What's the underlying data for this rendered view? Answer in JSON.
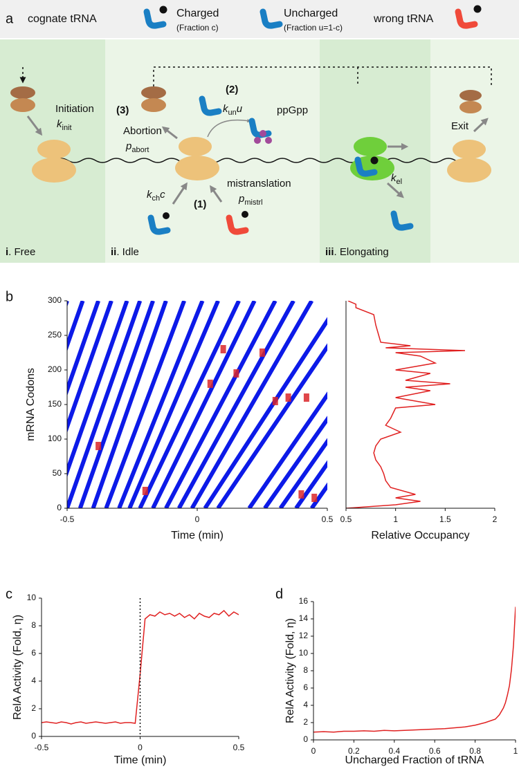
{
  "panel_a": {
    "label": "a",
    "legend": {
      "cognate": "cognate tRNA",
      "charged": "Charged",
      "charged_fraction": "(Fraction c)",
      "uncharged": "Uncharged",
      "uncharged_fraction": "(Fraction u=1-c)",
      "wrong": "wrong tRNA"
    },
    "states": [
      {
        "num": "i",
        "name": ". Free"
      },
      {
        "num": "ii",
        "name": ". Idle"
      },
      {
        "num": "iii",
        "name": ". Elongating"
      }
    ],
    "initiation": "Initiation",
    "k_init": {
      "main": "k",
      "sub": "init"
    },
    "step3": "(3)",
    "abortion": "Abortion",
    "p_abort": {
      "main": "p",
      "sub": "abort"
    },
    "step2": "(2)",
    "k_un": {
      "main": "k",
      "sub": "un",
      "after": "u"
    },
    "ppgpp": "ppGpp",
    "step1": "(1)",
    "k_ch": {
      "main": "k",
      "sub": "ch",
      "after": "c"
    },
    "mistranslation": "mistranslation",
    "p_mistrl": {
      "main": "p",
      "sub": "mistrl"
    },
    "k_el": {
      "main": "k",
      "sub": "el"
    },
    "exit": "Exit"
  },
  "chart_data": [
    {
      "type": "line",
      "panel_label": "b",
      "xlabel": "Time (min)",
      "ylabel": "mRNA Codons",
      "color": "#0c1ae8",
      "xlim": [
        -0.5,
        0.5
      ],
      "xticks": [
        -0.5,
        0,
        0.5
      ],
      "ylim": [
        0,
        300
      ],
      "yticks": [
        0,
        50,
        100,
        150,
        200,
        250,
        300
      ],
      "series": [
        {
          "x": [
            -0.78,
            -0.5
          ],
          "values": [
            0,
            300
          ]
        },
        {
          "x": [
            -0.72,
            -0.44
          ],
          "values": [
            0,
            300
          ]
        },
        {
          "x": [
            -0.66,
            -0.38
          ],
          "values": [
            0,
            300
          ]
        },
        {
          "x": [
            -0.61,
            -0.33
          ],
          "values": [
            0,
            300
          ]
        },
        {
          "x": [
            -0.55,
            -0.27
          ],
          "values": [
            0,
            300
          ]
        },
        {
          "x": [
            -0.5,
            -0.22
          ],
          "values": [
            0,
            300
          ]
        },
        {
          "x": [
            -0.45,
            -0.17
          ],
          "values": [
            0,
            300
          ]
        },
        {
          "x": [
            -0.4,
            -0.12
          ],
          "values": [
            0,
            300
          ]
        },
        {
          "x": [
            -0.35,
            -0.05
          ],
          "values": [
            0,
            300
          ]
        },
        {
          "x": [
            -0.3,
            0.02
          ],
          "values": [
            0,
            300
          ]
        },
        {
          "x": [
            -0.26,
            0.08
          ],
          "values": [
            0,
            300
          ]
        },
        {
          "x": [
            -0.22,
            0.16
          ],
          "values": [
            0,
            300
          ]
        },
        {
          "x": [
            -0.17,
            0.22
          ],
          "values": [
            0,
            300
          ]
        },
        {
          "x": [
            -0.12,
            0.3
          ],
          "values": [
            0,
            300
          ]
        },
        {
          "x": [
            -0.07,
            0.37
          ],
          "values": [
            0,
            300
          ]
        },
        {
          "x": [
            -0.02,
            0.44
          ],
          "values": [
            0,
            300
          ]
        },
        {
          "x": [
            0.03,
            0.55
          ],
          "values": [
            0,
            300
          ]
        },
        {
          "x": [
            0.08,
            0.62
          ],
          "values": [
            0,
            300
          ]
        },
        {
          "x": [
            0.2,
            0.75
          ],
          "values": [
            0,
            300
          ]
        },
        {
          "x": [
            0.26,
            0.82
          ],
          "values": [
            0,
            300
          ]
        },
        {
          "x": [
            0.32,
            0.88
          ],
          "values": [
            0,
            300
          ]
        },
        {
          "x": [
            0.38,
            0.94
          ],
          "values": [
            0,
            300
          ]
        },
        {
          "x": [
            0.44,
            1.0
          ],
          "values": [
            0,
            300
          ]
        }
      ],
      "pauses": {
        "color": "#d9262a",
        "x": [
          -0.38,
          -0.2,
          0.05,
          0.1,
          0.15,
          0.25,
          0.3,
          0.35,
          0.4,
          0.45,
          0.42
        ],
        "y": [
          90,
          25,
          180,
          230,
          195,
          225,
          155,
          160,
          20,
          15,
          160
        ]
      }
    },
    {
      "type": "line",
      "orientation": "horizontal",
      "xlabel": "Relative Occupancy",
      "color": "#e02020",
      "xlim": [
        0.5,
        2
      ],
      "xticks": [
        0.5,
        1,
        1.5,
        2
      ],
      "ylim": [
        0,
        300
      ],
      "y": [
        300,
        295,
        290,
        280,
        265,
        255,
        240,
        235,
        232,
        228,
        225,
        220,
        210,
        200,
        195,
        185,
        180,
        175,
        170,
        160,
        150,
        145,
        130,
        120,
        110,
        100,
        90,
        80,
        70,
        60,
        50,
        40,
        30,
        20,
        15,
        10,
        5,
        0
      ],
      "values": [
        0.52,
        0.6,
        0.6,
        0.78,
        0.8,
        0.82,
        0.85,
        1.15,
        0.9,
        1.7,
        1.0,
        1.25,
        1.4,
        1.0,
        1.35,
        1.1,
        1.55,
        1.1,
        1.35,
        1.0,
        1.4,
        1.0,
        0.95,
        0.9,
        1.05,
        0.85,
        0.8,
        0.78,
        0.8,
        0.85,
        0.88,
        0.9,
        0.95,
        1.2,
        1.0,
        1.25,
        1.0,
        0.5
      ]
    },
    {
      "type": "line",
      "panel_label": "c",
      "xlabel": "Time (min)",
      "ylabel": "RelA Activity (Fold, η)",
      "color": "#e02020",
      "xlim": [
        -0.5,
        0.5
      ],
      "xticks": [
        -0.5,
        0,
        0.5
      ],
      "ylim": [
        0,
        10
      ],
      "yticks": [
        0,
        2,
        4,
        6,
        8,
        10
      ],
      "vline": 0,
      "x": [
        -0.5,
        -0.475,
        -0.45,
        -0.425,
        -0.4,
        -0.375,
        -0.35,
        -0.325,
        -0.3,
        -0.275,
        -0.25,
        -0.225,
        -0.2,
        -0.175,
        -0.15,
        -0.125,
        -0.1,
        -0.075,
        -0.05,
        -0.025,
        0,
        0.025,
        0.05,
        0.075,
        0.1,
        0.125,
        0.15,
        0.175,
        0.2,
        0.225,
        0.25,
        0.275,
        0.3,
        0.325,
        0.35,
        0.375,
        0.4,
        0.425,
        0.45,
        0.475,
        0.5
      ],
      "values": [
        1.0,
        1.05,
        1.0,
        0.95,
        1.05,
        1.0,
        0.9,
        1.0,
        1.05,
        0.95,
        1.0,
        1.05,
        1.0,
        0.95,
        1.0,
        1.05,
        0.95,
        1.0,
        1.0,
        0.95,
        4.5,
        8.5,
        8.8,
        8.7,
        9.0,
        8.8,
        8.9,
        8.7,
        8.9,
        8.6,
        8.8,
        8.5,
        8.9,
        8.7,
        8.6,
        8.9,
        8.8,
        9.1,
        8.7,
        9.0,
        8.8
      ]
    },
    {
      "type": "line",
      "panel_label": "d",
      "xlabel": "Uncharged Fraction of tRNA",
      "ylabel": "RelA Activity (Fold, η)",
      "color": "#e02020",
      "xlim": [
        0,
        1
      ],
      "xticks": [
        0,
        0.2,
        0.4,
        0.6,
        0.8,
        1
      ],
      "ylim": [
        0,
        16
      ],
      "yticks": [
        0,
        2,
        4,
        6,
        8,
        10,
        12,
        14,
        16
      ],
      "x": [
        0,
        0.05,
        0.1,
        0.15,
        0.2,
        0.25,
        0.3,
        0.35,
        0.4,
        0.45,
        0.5,
        0.55,
        0.6,
        0.65,
        0.7,
        0.75,
        0.8,
        0.85,
        0.9,
        0.92,
        0.94,
        0.95,
        0.96,
        0.97,
        0.98,
        0.99,
        1.0
      ],
      "values": [
        0.9,
        0.95,
        0.9,
        1.0,
        1.0,
        1.05,
        1.0,
        1.1,
        1.05,
        1.1,
        1.15,
        1.2,
        1.25,
        1.3,
        1.4,
        1.5,
        1.7,
        2.0,
        2.4,
        2.9,
        3.7,
        4.3,
        5.2,
        6.3,
        8.2,
        11,
        15.4
      ]
    }
  ]
}
